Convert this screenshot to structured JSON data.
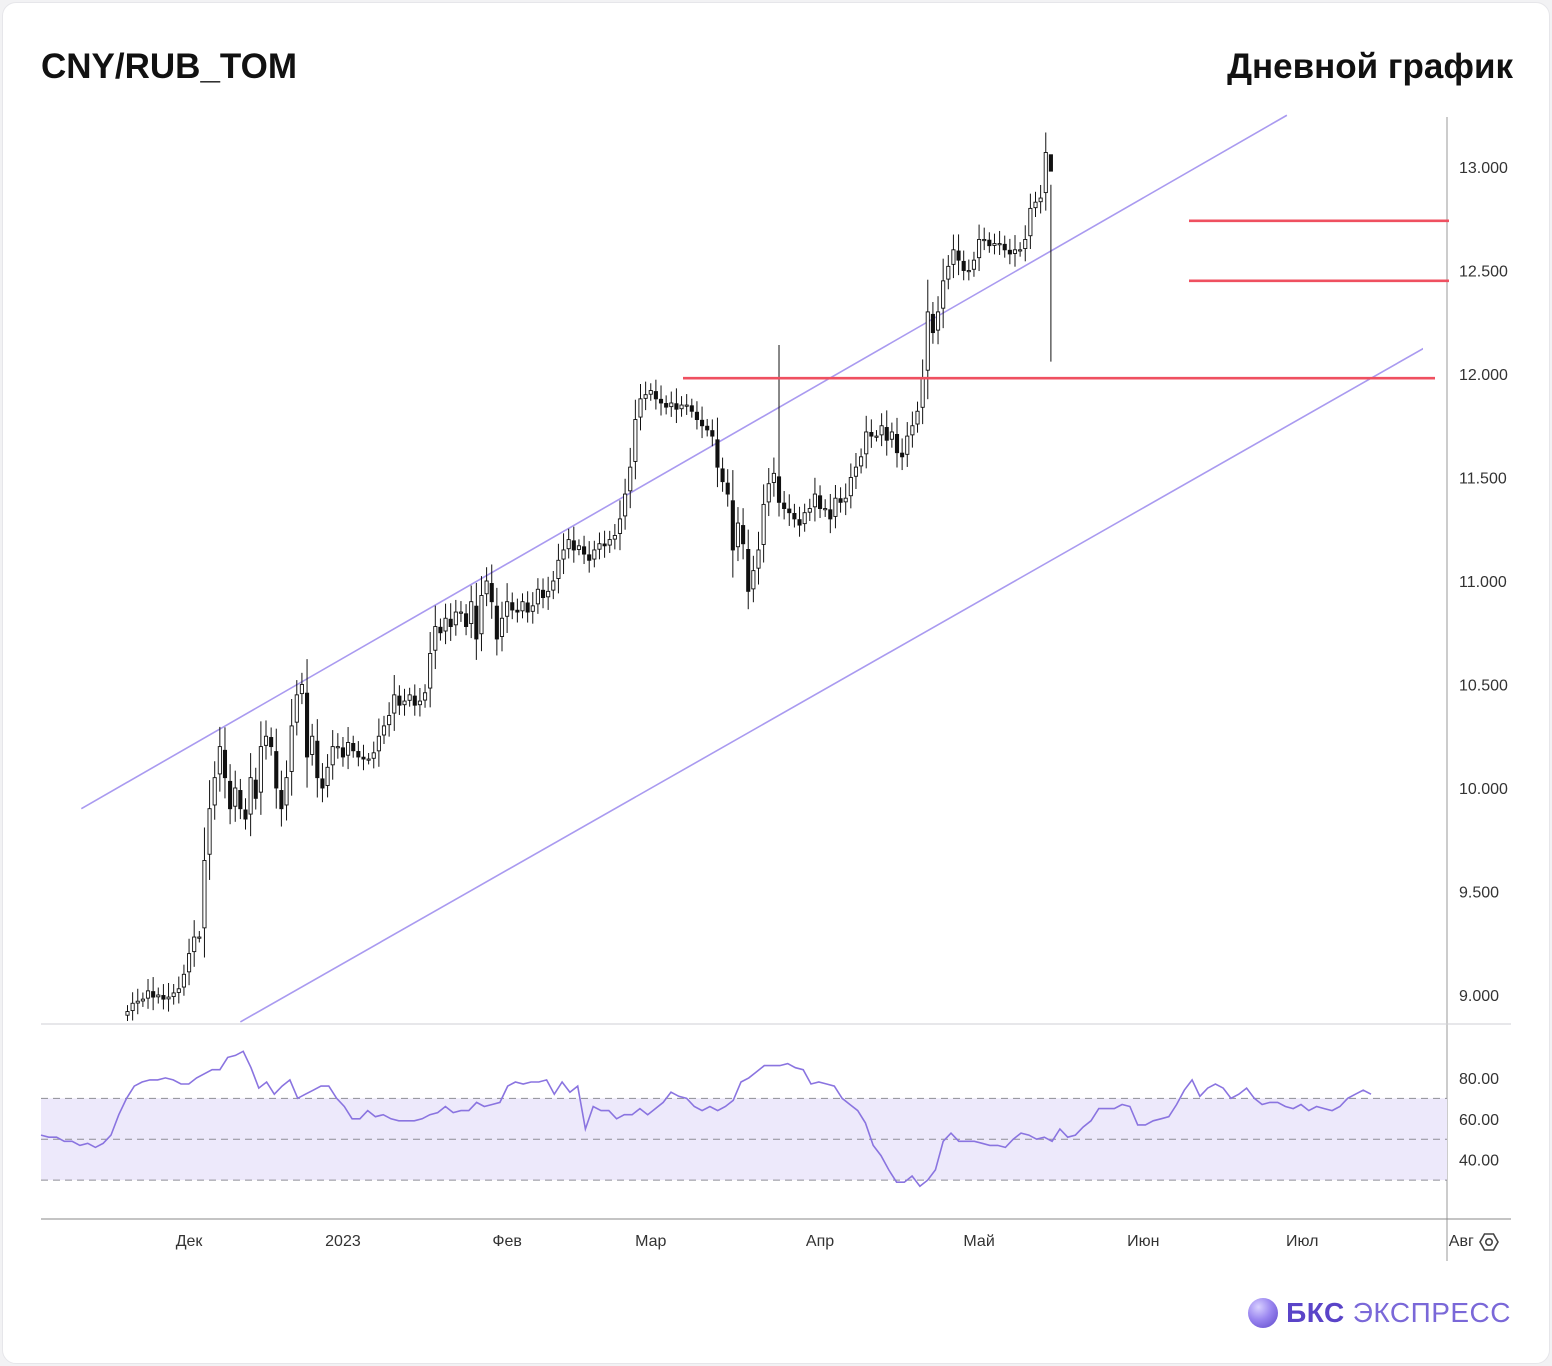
{
  "header": {
    "ticker": "CNY/RUB_TOM",
    "period": "Дневной график"
  },
  "branding": {
    "bold": "БКС",
    "light": "ЭКСПРЕСС"
  },
  "settings": {
    "icon": "gear-icon"
  },
  "colors": {
    "up": "#ffffff",
    "down": "#111111",
    "wick": "#111111",
    "level": "#ef5060",
    "channel": "#a99af0",
    "rsi_line": "#8a74e0",
    "rsi_band": "#ede9fb",
    "grid": "#dddddd"
  },
  "chart_data": [
    {
      "type": "candlestick",
      "title": "CNY/RUB_TOM",
      "subtitle": "Дневной график",
      "y_ticks": [
        "13.000",
        "12.500",
        "12.000",
        "11.500",
        "11.000",
        "10.500",
        "10.000",
        "9.500",
        "9.000"
      ],
      "y_tick_values": [
        13.0,
        12.5,
        12.0,
        11.5,
        11.0,
        10.5,
        10.0,
        9.5,
        9.0
      ],
      "ylim": [
        8.87,
        13.25
      ],
      "x_ticks": [
        "Дек",
        "2023",
        "Фев",
        "Мар",
        "Апр",
        "Май",
        "Июн",
        "Июл",
        "Авг"
      ],
      "x_tick_index": [
        12,
        42,
        74,
        102,
        135,
        166,
        198,
        229,
        260
      ],
      "levels": [
        11.98,
        12.45,
        12.74
      ],
      "channel_upper": [
        [
          -9,
          9.9
        ],
        [
          226,
          13.25
        ]
      ],
      "channel_lower": [
        [
          22,
          8.87
        ],
        [
          263,
          12.27
        ]
      ],
      "closes": [
        8.92,
        8.96,
        8.97,
        8.98,
        9.02,
        8.99,
        9.0,
        8.98,
        8.99,
        9.01,
        9.03,
        9.1,
        9.2,
        9.28,
        9.28,
        9.65,
        9.9,
        10.05,
        10.2,
        10.05,
        9.9,
        10.0,
        9.9,
        9.85,
        10.05,
        9.95,
        10.2,
        10.25,
        10.2,
        10.0,
        9.9,
        10.05,
        10.3,
        10.45,
        10.5,
        10.15,
        10.25,
        10.05,
        10.0,
        10.1,
        10.2,
        10.2,
        10.15,
        10.22,
        10.18,
        10.15,
        10.14,
        10.14,
        10.17,
        10.25,
        10.3,
        10.35,
        10.45,
        10.4,
        10.42,
        10.45,
        10.4,
        10.42,
        10.46,
        10.65,
        10.78,
        10.75,
        10.82,
        10.78,
        10.85,
        10.85,
        10.78,
        10.9,
        10.72,
        10.93,
        11.0,
        10.9,
        10.72,
        10.82,
        10.9,
        10.86,
        10.85,
        10.9,
        10.85,
        10.88,
        10.96,
        10.92,
        10.95,
        11.0,
        11.1,
        11.15,
        11.2,
        11.15,
        11.17,
        11.13,
        11.1,
        11.15,
        11.18,
        11.17,
        11.2,
        11.22,
        11.3,
        11.42,
        11.55,
        11.78,
        11.88,
        11.9,
        11.92,
        11.88,
        11.86,
        11.84,
        11.86,
        11.83,
        11.85,
        11.85,
        11.82,
        11.78,
        11.75,
        11.73,
        11.7,
        11.55,
        11.48,
        11.42,
        11.15,
        11.28,
        11.18,
        10.95,
        11.05,
        11.15,
        11.37,
        11.47,
        11.52,
        11.38,
        11.35,
        11.33,
        11.3,
        11.27,
        11.33,
        11.35,
        11.42,
        11.35,
        11.35,
        11.3,
        11.4,
        11.38,
        11.4,
        11.5,
        11.55,
        11.6,
        11.72,
        11.7,
        11.7,
        11.75,
        11.68,
        11.72,
        11.62,
        11.6,
        11.7,
        11.75,
        11.82,
        11.98,
        12.3,
        12.2,
        12.3,
        12.45,
        12.52,
        12.6,
        12.55,
        12.5,
        12.5,
        12.55,
        12.65,
        12.65,
        12.62,
        12.63,
        12.63,
        12.6,
        12.58,
        12.6,
        12.6,
        12.65,
        12.8,
        12.83,
        12.85,
        13.07,
        12.98
      ],
      "rsi": {
        "y_ticks": [
          "80.00",
          "60.00",
          "40.00"
        ],
        "y_tick_values": [
          80,
          60,
          40
        ],
        "ylim": [
          10,
          100
        ],
        "overbought": 70,
        "midline": 50,
        "oversold": 30,
        "values": [
          52,
          51,
          51,
          49,
          49,
          47,
          48,
          46,
          48,
          52,
          62,
          70,
          76,
          78,
          79,
          79,
          80,
          79,
          77,
          77,
          80,
          82,
          84,
          84,
          90,
          91,
          93,
          85,
          75,
          78,
          72,
          76,
          79,
          70,
          72,
          74,
          76,
          76,
          70,
          66,
          60,
          60,
          64,
          61,
          62,
          60,
          59,
          59,
          59,
          60,
          62,
          63,
          66,
          63,
          64,
          64,
          68,
          66,
          67,
          68,
          76,
          78,
          77,
          78,
          78,
          79,
          72,
          78,
          73,
          76,
          55,
          66,
          64,
          64,
          60,
          62,
          62,
          65,
          62,
          65,
          68,
          73,
          71,
          70,
          66,
          64,
          66,
          64,
          66,
          69,
          78,
          80,
          83,
          86,
          86,
          86,
          87,
          85,
          84,
          77,
          78,
          77,
          76,
          70,
          67,
          64,
          58,
          47,
          42,
          35,
          29,
          29,
          32,
          27,
          30,
          35,
          49,
          53,
          49,
          49,
          49,
          48,
          47,
          47,
          46,
          50,
          53,
          52,
          50,
          51,
          49,
          55,
          51,
          52,
          56,
          59,
          65,
          65,
          65,
          67,
          66,
          57,
          57,
          59,
          60,
          61,
          67,
          74,
          79,
          71,
          75,
          77,
          75,
          70,
          72,
          75,
          70,
          67,
          68,
          68,
          66,
          65,
          67,
          64,
          66,
          65,
          64,
          66,
          70,
          72,
          74,
          72
        ]
      }
    }
  ]
}
